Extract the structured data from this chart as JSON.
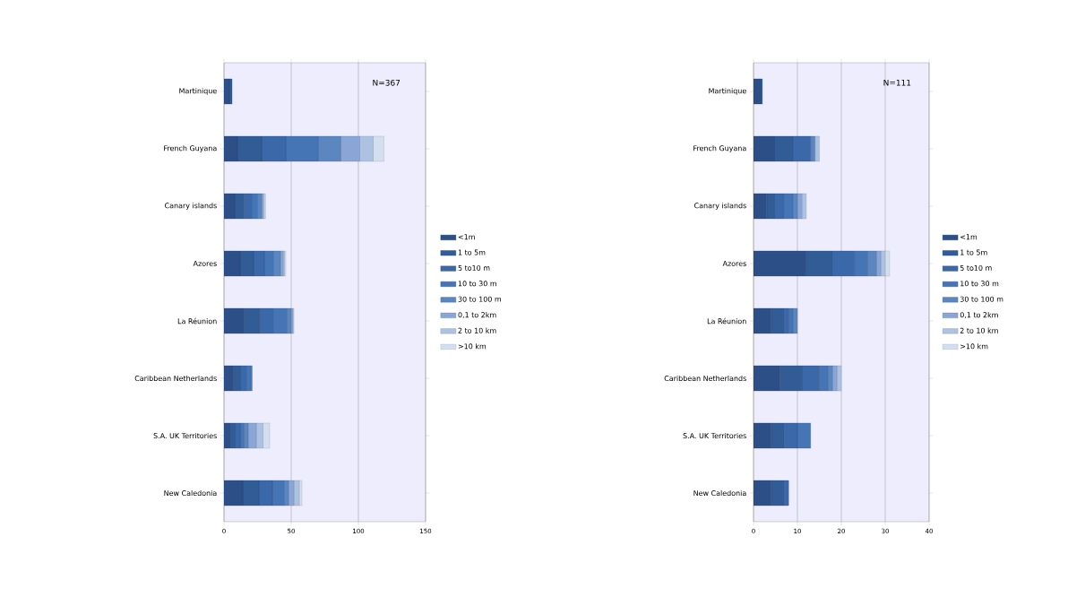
{
  "chart_data": [
    {
      "type": "bar",
      "orientation": "horizontal",
      "stacked": true,
      "categories": [
        "Martinique",
        "French Guyana",
        "Canary islands",
        "Azores",
        "La Réunion",
        "Caribbean Netherlands",
        "S.A. UK Territories",
        "New Caledonia"
      ],
      "series": [
        {
          "name": "<1m",
          "color": "#2b4f86",
          "values": [
            4,
            10,
            8,
            12,
            15,
            7,
            5,
            14
          ]
        },
        {
          "name": "1 to 5m",
          "color": "#325c96",
          "values": [
            2,
            18,
            7,
            10,
            12,
            6,
            4,
            12
          ]
        },
        {
          "name": "5 to10 m",
          "color": "#3a68a8",
          "values": [
            0,
            18,
            6,
            8,
            10,
            4,
            3,
            10
          ]
        },
        {
          "name": "10 to 30 m",
          "color": "#4675b5",
          "values": [
            0,
            24,
            4,
            7,
            10,
            3,
            3,
            9
          ]
        },
        {
          "name": "30 to 100 m",
          "color": "#5b86c0",
          "values": [
            0,
            17,
            3,
            5,
            3,
            1,
            3,
            3
          ]
        },
        {
          "name": "0,1 to 2km",
          "color": "#8aa6d6",
          "values": [
            0,
            14,
            1,
            2,
            1,
            0,
            6,
            4
          ]
        },
        {
          "name": "2 to 10 km",
          "color": "#adc2e3",
          "values": [
            0,
            10,
            1,
            1,
            1,
            0,
            5,
            4
          ]
        },
        {
          "name": ">10 km",
          "color": "#d3dfef",
          "values": [
            0,
            8,
            1,
            1,
            0,
            0,
            5,
            2
          ]
        }
      ],
      "xlim": [
        0,
        150
      ],
      "xticks": [
        0,
        50,
        100,
        150
      ],
      "grid": "x",
      "legend": "right",
      "annotations": [
        "N=367"
      ]
    },
    {
      "type": "bar",
      "orientation": "horizontal",
      "stacked": true,
      "categories": [
        "Martinique",
        "French Guyana",
        "Canary islands",
        "Azores",
        "La Réunion",
        "Caribbean Netherlands",
        "S.A. UK Territories",
        "New Caledonia"
      ],
      "series": [
        {
          "name": "<1m",
          "color": "#2b4f86",
          "values": [
            2,
            5,
            3,
            12,
            4,
            6,
            4,
            4
          ]
        },
        {
          "name": "1 to 5m",
          "color": "#325c96",
          "values": [
            0,
            4,
            2,
            6,
            3,
            5,
            3,
            3
          ]
        },
        {
          "name": "5 to10 m",
          "color": "#3a68a8",
          "values": [
            0,
            4,
            2,
            5,
            1,
            4,
            3,
            1
          ]
        },
        {
          "name": "10 to 30 m",
          "color": "#4675b5",
          "values": [
            0,
            0,
            2,
            3,
            1,
            2,
            3,
            0
          ]
        },
        {
          "name": "30 to 100 m",
          "color": "#5b86c0",
          "values": [
            0,
            1,
            1,
            2,
            1,
            1,
            0,
            0
          ]
        },
        {
          "name": "0,1 to 2km",
          "color": "#8aa6d6",
          "values": [
            0,
            0,
            1,
            1,
            0,
            1,
            0,
            0
          ]
        },
        {
          "name": "2 to 10 km",
          "color": "#adc2e3",
          "values": [
            0,
            1,
            1,
            1,
            0,
            1,
            0,
            0
          ]
        },
        {
          "name": ">10 km",
          "color": "#d3dfef",
          "values": [
            0,
            0,
            0,
            1,
            0,
            0,
            0,
            0
          ]
        }
      ],
      "xlim": [
        0,
        40
      ],
      "xticks": [
        0,
        10,
        20,
        30,
        40
      ],
      "grid": "x",
      "legend": "right",
      "annotations": [
        "N=111"
      ]
    }
  ]
}
